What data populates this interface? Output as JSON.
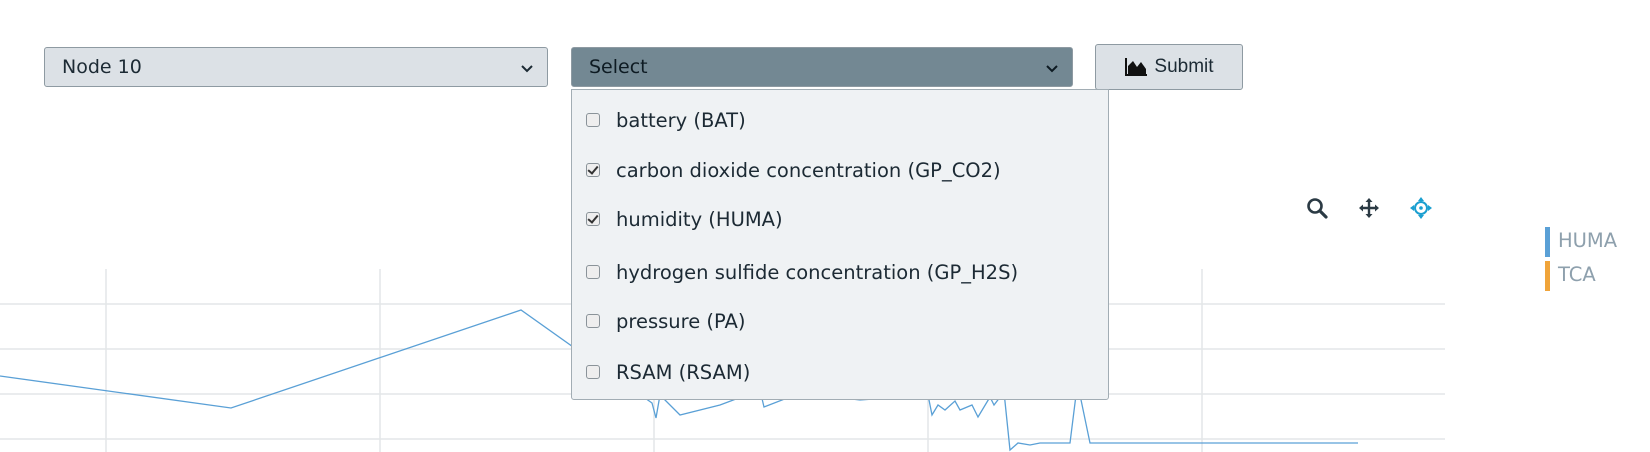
{
  "node_select": {
    "value": "Node 10"
  },
  "variable_select": {
    "placeholder": "Select",
    "options": [
      {
        "label": "battery (BAT)",
        "checked": false
      },
      {
        "label": "carbon dioxide concentration (GP_CO2)",
        "checked": true
      },
      {
        "label": "humidity (HUMA)",
        "checked": true
      },
      {
        "label": "hydrogen sulfide concentration (GP_H2S)",
        "checked": false
      },
      {
        "label": "pressure (PA)",
        "checked": false
      },
      {
        "label": "RSAM (RSAM)",
        "checked": false
      }
    ]
  },
  "submit": {
    "label": "Submit",
    "icon": "area-chart-icon"
  },
  "toolbar": {
    "icons": [
      "zoom-icon",
      "pan-icon",
      "reset-axes-icon"
    ]
  },
  "legend": [
    {
      "label": "HUMA",
      "color": "#5aa0d6"
    },
    {
      "label": "TCA",
      "color": "#f0a43a"
    }
  ],
  "colors": {
    "accent": "#1a9fd0",
    "dropdown_bg": "#eff2f4",
    "select_active_bg": "#738893",
    "select_bg": "#dce1e6"
  }
}
